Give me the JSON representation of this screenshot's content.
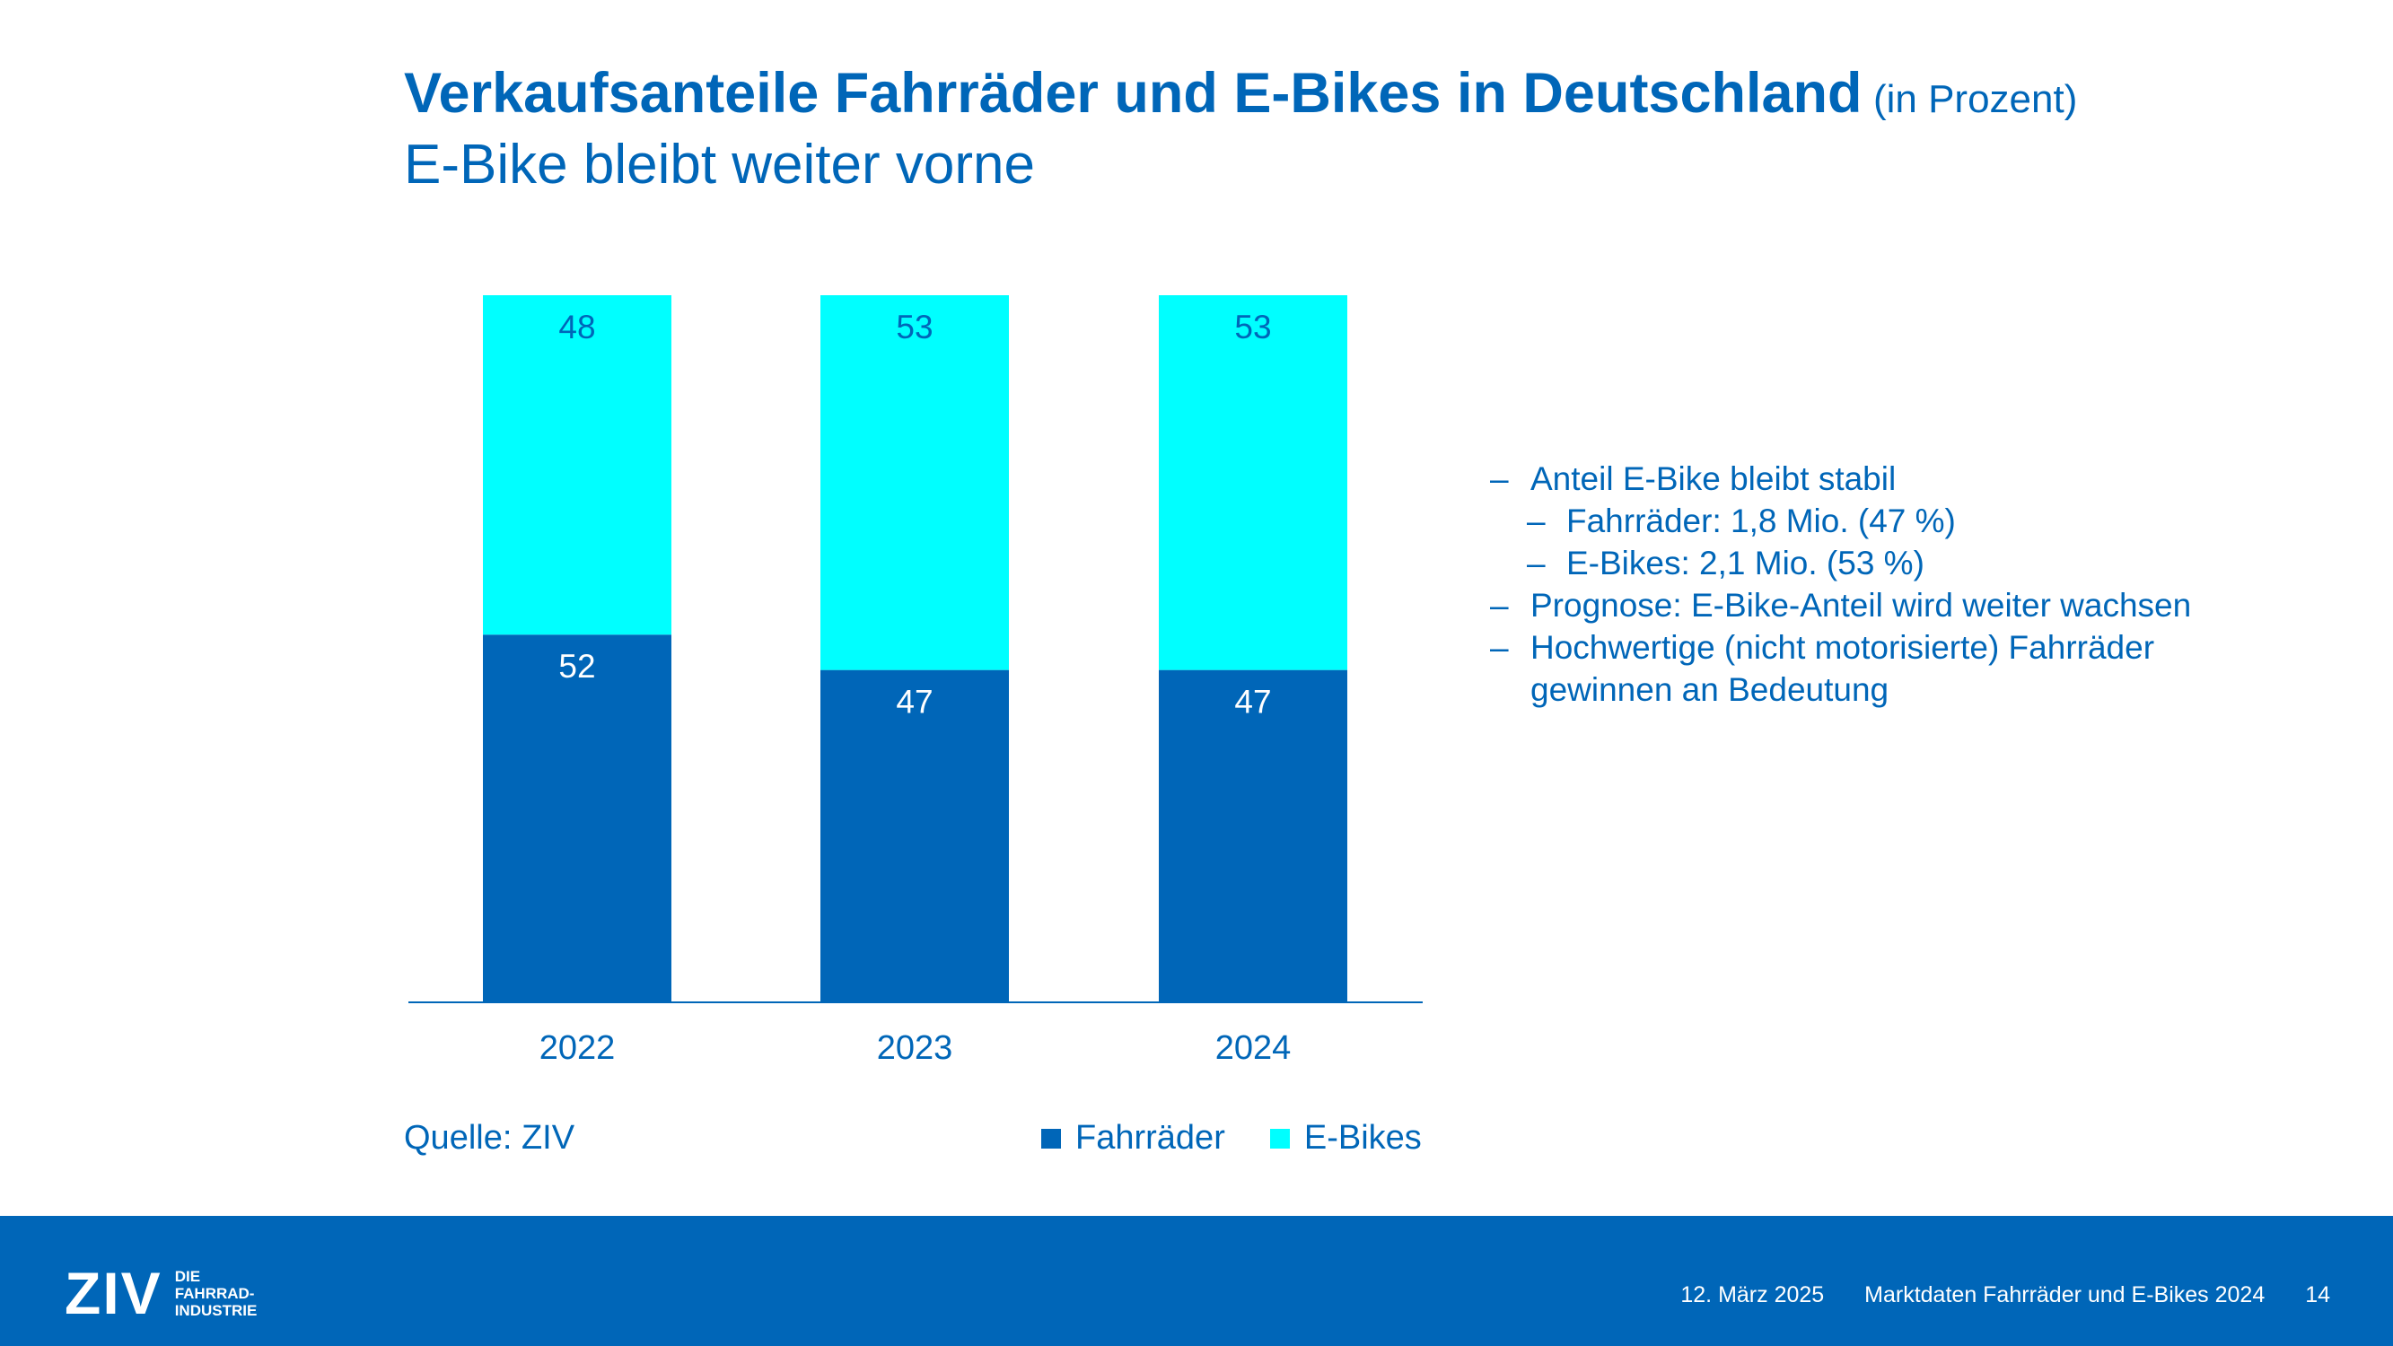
{
  "title": "Verkaufsanteile Fahrräder und E-Bikes in Deutschland",
  "title_unit": "(in Prozent)",
  "subtitle": "E-Bike bleibt weiter vorne",
  "source": "Quelle: ZIV",
  "colors": {
    "fahrraeder": "#0066b8",
    "ebikes": "#00ffff",
    "text": "#0066b8"
  },
  "chart_data": {
    "type": "bar",
    "stacked": true,
    "categories": [
      "2022",
      "2023",
      "2024"
    ],
    "series": [
      {
        "name": "Fahrräder",
        "values": [
          52,
          47,
          47
        ],
        "color": "#0066b8",
        "label_color": "#ffffff"
      },
      {
        "name": "E-Bikes",
        "values": [
          48,
          53,
          53
        ],
        "color": "#00ffff",
        "label_color": "#0066b8"
      }
    ],
    "ylim": [
      0,
      100
    ],
    "grid": false,
    "legend": "bottom"
  },
  "legend": [
    {
      "label": "Fahrräder",
      "color": "#0066b8"
    },
    {
      "label": "E-Bikes",
      "color": "#00ffff"
    }
  ],
  "bullets": [
    {
      "level": 1,
      "text": "Anteil E-Bike bleibt stabil"
    },
    {
      "level": 2,
      "text": "Fahrräder: 1,8 Mio. (47 %)"
    },
    {
      "level": 2,
      "text": "E-Bikes: 2,1 Mio. (53 %)"
    },
    {
      "level": 1,
      "text": "Prognose: E-Bike-Anteil wird weiter wachsen"
    },
    {
      "level": 1,
      "text": "Hochwertige (nicht motorisierte) Fahrräder"
    },
    {
      "level": 0,
      "text": "gewinnen an Bedeutung"
    }
  ],
  "bullet_dash": "–",
  "footer": {
    "logo_text": "ZIV",
    "logo_tagline": [
      "DIE",
      "FAHRRAD-",
      "INDUSTRIE"
    ],
    "date": "12. März 2025",
    "doc_title": "Marktdaten Fahrräder und E-Bikes 2024",
    "page": "14"
  }
}
